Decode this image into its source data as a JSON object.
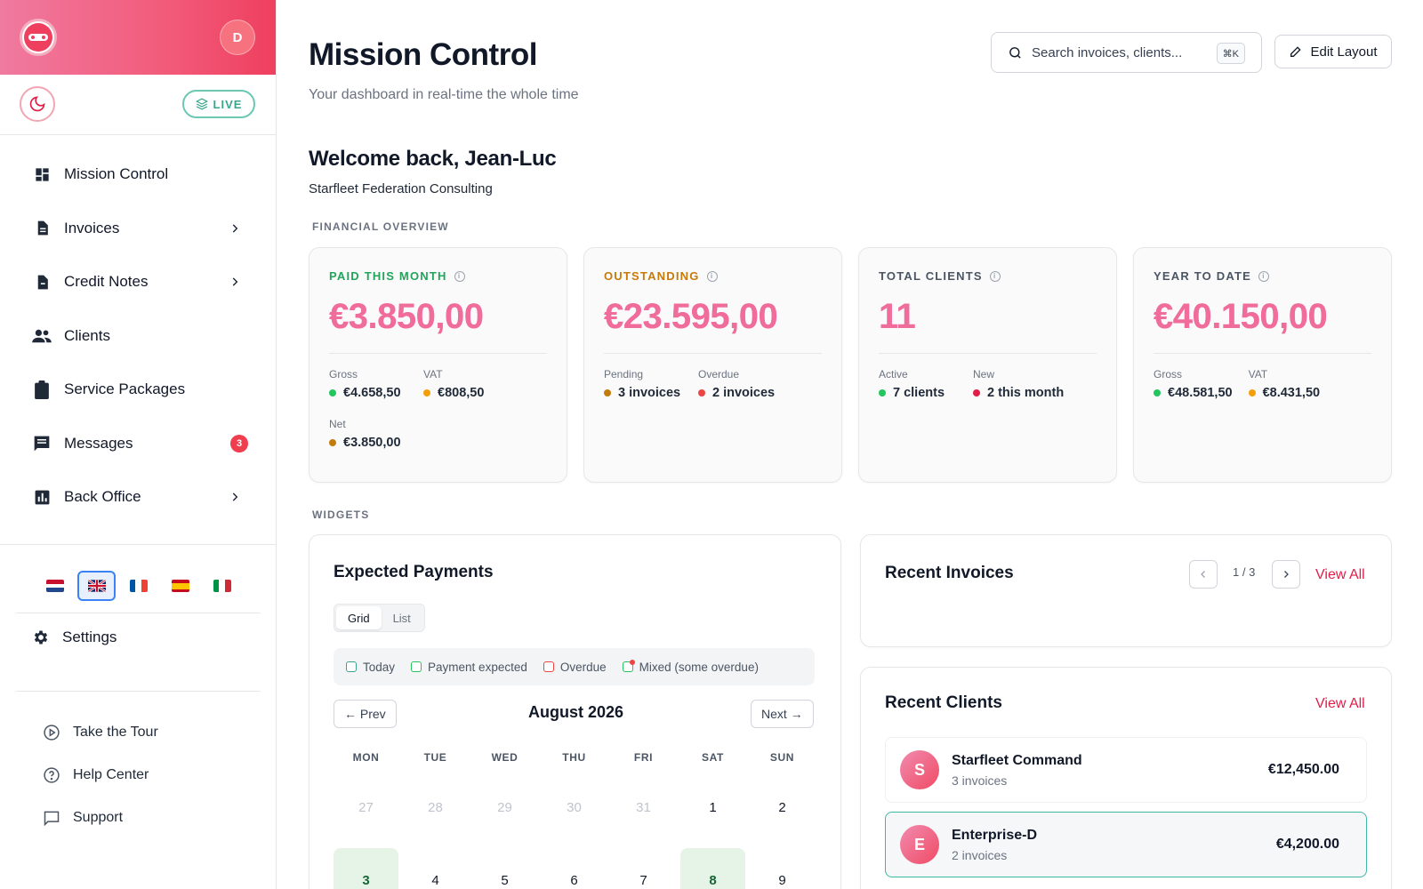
{
  "sidebar": {
    "avatar_letter": "D",
    "live_label": "LIVE",
    "nav": [
      {
        "label": "Mission Control",
        "icon": "dashboard-icon"
      },
      {
        "label": "Invoices",
        "icon": "document-icon",
        "has_children": true
      },
      {
        "label": "Credit Notes",
        "icon": "credit-note-icon",
        "has_children": true
      },
      {
        "label": "Clients",
        "icon": "people-icon"
      },
      {
        "label": "Service Packages",
        "icon": "clipboard-icon"
      },
      {
        "label": "Messages",
        "icon": "chat-icon",
        "badge": "3"
      },
      {
        "label": "Back Office",
        "icon": "bar-chart-icon",
        "has_children": true
      }
    ],
    "languages": [
      {
        "code": "nl",
        "active": false
      },
      {
        "code": "en",
        "active": true
      },
      {
        "code": "fr",
        "active": false
      },
      {
        "code": "es",
        "active": false
      },
      {
        "code": "it",
        "active": false
      }
    ],
    "settings_label": "Settings",
    "help": [
      {
        "label": "Take the Tour",
        "icon": "play-icon"
      },
      {
        "label": "Help Center",
        "icon": "help-circle-icon"
      },
      {
        "label": "Support",
        "icon": "message-square-icon"
      }
    ]
  },
  "header": {
    "title": "Mission Control",
    "subtitle": "Your dashboard in real-time the whole time",
    "search_placeholder": "Search invoices, clients...",
    "search_shortcut": "⌘K",
    "edit_layout_label": "Edit Layout"
  },
  "welcome": {
    "greeting": "Welcome back, Jean-Luc",
    "company": "Starfleet Federation Consulting"
  },
  "financial_overview": {
    "section_label": "FINANCIAL OVERVIEW",
    "cards": [
      {
        "label": "PAID THIS MONTH",
        "label_color": "#22a55b",
        "value": "€3.850,00",
        "subs": [
          {
            "label": "Gross",
            "value": "€4.658,50",
            "dot": "#22c55e"
          },
          {
            "label": "VAT",
            "value": "€808,50",
            "dot": "#f59e0b"
          },
          {
            "label": "Net",
            "value": "€3.850,00",
            "dot": "#c27c0e"
          }
        ]
      },
      {
        "label": "OUTSTANDING",
        "label_color": "#c77a0a",
        "value": "€23.595,00",
        "subs": [
          {
            "label": "Pending",
            "value": "3 invoices",
            "dot": "#c27c0e"
          },
          {
            "label": "Overdue",
            "value": "2 invoices",
            "dot": "#ef4444"
          }
        ]
      },
      {
        "label": "TOTAL CLIENTS",
        "label_color": "#4b5563",
        "value": "11",
        "subs": [
          {
            "label": "Active",
            "value": "7 clients",
            "dot": "#22c55e"
          },
          {
            "label": "New",
            "value": "2 this month",
            "dot": "#e11d48"
          }
        ]
      },
      {
        "label": "YEAR TO DATE",
        "label_color": "#4b5563",
        "value": "€40.150,00",
        "subs": [
          {
            "label": "Gross",
            "value": "€48.581,50",
            "dot": "#22c55e"
          },
          {
            "label": "VAT",
            "value": "€8.431,50",
            "dot": "#f59e0b"
          }
        ]
      }
    ]
  },
  "widgets": {
    "section_label": "WIDGETS",
    "expected_payments": {
      "title": "Expected Payments",
      "view_modes": [
        "Grid",
        "List"
      ],
      "active_view": "Grid",
      "legend": [
        {
          "label": "Today",
          "color": "#3aa58c"
        },
        {
          "label": "Payment expected",
          "color": "#22c55e"
        },
        {
          "label": "Overdue",
          "color": "#ef4444"
        },
        {
          "label": "Mixed (some overdue)",
          "color": "#22c55e"
        }
      ],
      "prev_label": "← Prev",
      "next_label": "Next →",
      "month_label": "August 2026",
      "weekdays": [
        "MON",
        "TUE",
        "WED",
        "THU",
        "FRI",
        "SAT",
        "SUN"
      ],
      "days": [
        {
          "d": "27",
          "muted": true
        },
        {
          "d": "28",
          "muted": true
        },
        {
          "d": "29",
          "muted": true
        },
        {
          "d": "30",
          "muted": true
        },
        {
          "d": "31",
          "muted": true
        },
        {
          "d": "1"
        },
        {
          "d": "2"
        },
        {
          "d": "3",
          "highlight": true
        },
        {
          "d": "4"
        },
        {
          "d": "5"
        },
        {
          "d": "6"
        },
        {
          "d": "7"
        },
        {
          "d": "8",
          "highlight": true
        },
        {
          "d": "9"
        }
      ]
    },
    "recent_invoices": {
      "title": "Recent Invoices",
      "page_indicator": "1 / 3",
      "view_all_label": "View All"
    },
    "recent_clients": {
      "title": "Recent Clients",
      "view_all_label": "View All",
      "clients": [
        {
          "initial": "S",
          "name": "Starfleet Command",
          "invoices": "3 invoices",
          "amount": "€12,450.00",
          "selected": false
        },
        {
          "initial": "E",
          "name": "Enterprise-D",
          "invoices": "2 invoices",
          "amount": "€4,200.00",
          "selected": true
        }
      ]
    }
  }
}
